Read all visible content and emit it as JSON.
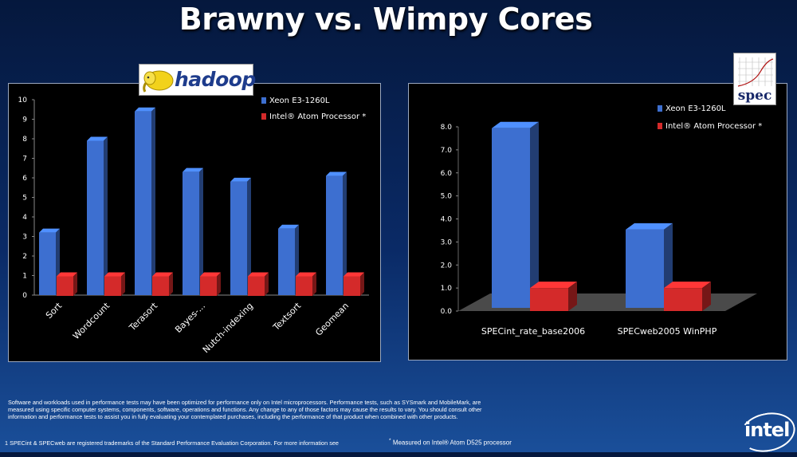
{
  "title": "Brawny vs. Wimpy Cores",
  "logos": {
    "hadoop": "hadoop",
    "spec": "spec",
    "intel": "intel"
  },
  "footer": {
    "disclaimer": "Software and workloads used in performance tests may have been optimized for performance only on Intel microprocessors.  Performance tests, such as SYSmark and MobileMark, are measured using specific computer systems, components, software, operations and functions.  Any change to any of those factors may cause the results to vary.  You should consult other information and performance tests to assist you in fully evaluating your contemplated purchases, including the performance of that product when combined with other products.",
    "trademark": "1 SPECint & SPECweb are registered trademarks of the Standard Performance Evaluation Corporation. For more information see",
    "measured_mark": "*",
    "measured": " Measured on Intel® Atom D525 processor"
  },
  "chart_data": [
    {
      "type": "bar",
      "categories": [
        "Sort",
        "Wordcount",
        "Terasort",
        "Bayes-...",
        "Nutch-indexing",
        "Textsort",
        "Geomean"
      ],
      "series": [
        {
          "name": "Xeon E3-1260L",
          "values": [
            3.2,
            7.9,
            9.4,
            6.3,
            5.8,
            3.4,
            6.1
          ],
          "color": "#3d6fd0"
        },
        {
          "name": "Intel® Atom Processor *",
          "values": [
            1,
            1,
            1,
            1,
            1,
            1,
            1
          ],
          "color": "#d42a2a"
        }
      ],
      "yticks": [
        "0",
        "1",
        "2",
        "3",
        "4",
        "5",
        "6",
        "7",
        "8",
        "9",
        "10"
      ],
      "ylim": [
        0,
        10
      ],
      "legend": "top-right",
      "grid": false
    },
    {
      "type": "bar",
      "categories": [
        "SPECint_rate_base2006",
        "SPECweb2005 WinPHP"
      ],
      "series": [
        {
          "name": "Xeon E3-1260L",
          "values": [
            7.8,
            3.4
          ],
          "color": "#3d6fd0"
        },
        {
          "name": "Intel® Atom Processor *",
          "values": [
            1,
            1
          ],
          "color": "#d42a2a"
        }
      ],
      "yticks": [
        "0.0",
        "1.0",
        "2.0",
        "3.0",
        "4.0",
        "5.0",
        "6.0",
        "7.0",
        "8.0"
      ],
      "ylim": [
        0,
        8
      ],
      "legend": "top-right",
      "grid": false
    }
  ]
}
